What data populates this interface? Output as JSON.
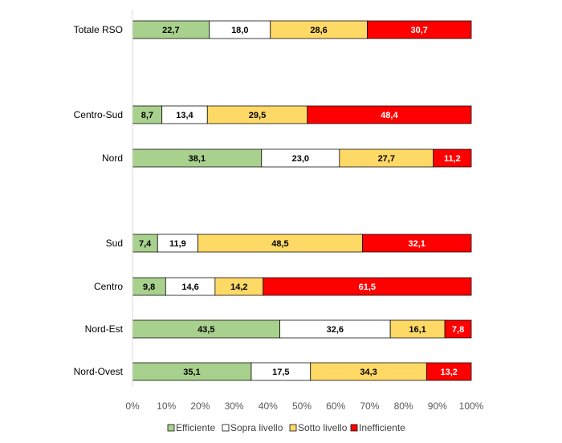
{
  "chart_data": {
    "type": "bar",
    "orientation": "horizontal",
    "stacked": "percent",
    "title": "",
    "xlabel": "",
    "ylabel": "",
    "xlim": [
      0,
      100
    ],
    "x_ticks": [
      "0%",
      "10%",
      "20%",
      "30%",
      "40%",
      "50%",
      "60%",
      "70%",
      "80%",
      "90%",
      "100%"
    ],
    "grid": false,
    "legend_position": "bottom",
    "categories": [
      "Totale RSO",
      "Centro-Sud",
      "Nord",
      "Sud",
      "Centro",
      "Nord-Est",
      "Nord-Ovest"
    ],
    "series": [
      {
        "name": "Efficiente",
        "color": "#a9d18e",
        "text_color": "#000000",
        "values": [
          22.7,
          8.7,
          38.1,
          7.4,
          9.8,
          43.5,
          35.1
        ],
        "labels": [
          "22,7",
          "8,7",
          "38,1",
          "7,4",
          "9,8",
          "43,5",
          "35,1"
        ]
      },
      {
        "name": "Sopra livello",
        "color": "#ffffff",
        "text_color": "#000000",
        "values": [
          18.0,
          13.4,
          23.0,
          11.9,
          14.6,
          32.6,
          17.5
        ],
        "labels": [
          "18,0",
          "13,4",
          "23,0",
          "11,9",
          "14,6",
          "32,6",
          "17,5"
        ]
      },
      {
        "name": "Sotto livello",
        "color": "#ffd966",
        "text_color": "#000000",
        "values": [
          28.6,
          29.5,
          27.7,
          48.5,
          14.2,
          16.1,
          34.3
        ],
        "labels": [
          "28,6",
          "29,5",
          "27,7",
          "48,5",
          "14,2",
          "16,1",
          "34,3"
        ]
      },
      {
        "name": "Inefficiente",
        "color": "#ff0000",
        "text_color": "#ffffff",
        "values": [
          30.7,
          48.4,
          11.2,
          32.1,
          61.5,
          7.8,
          13.2
        ],
        "labels": [
          "30,7",
          "48,4",
          "11,2",
          "32,1",
          "61,5",
          "7,8",
          "13,2"
        ]
      }
    ]
  }
}
